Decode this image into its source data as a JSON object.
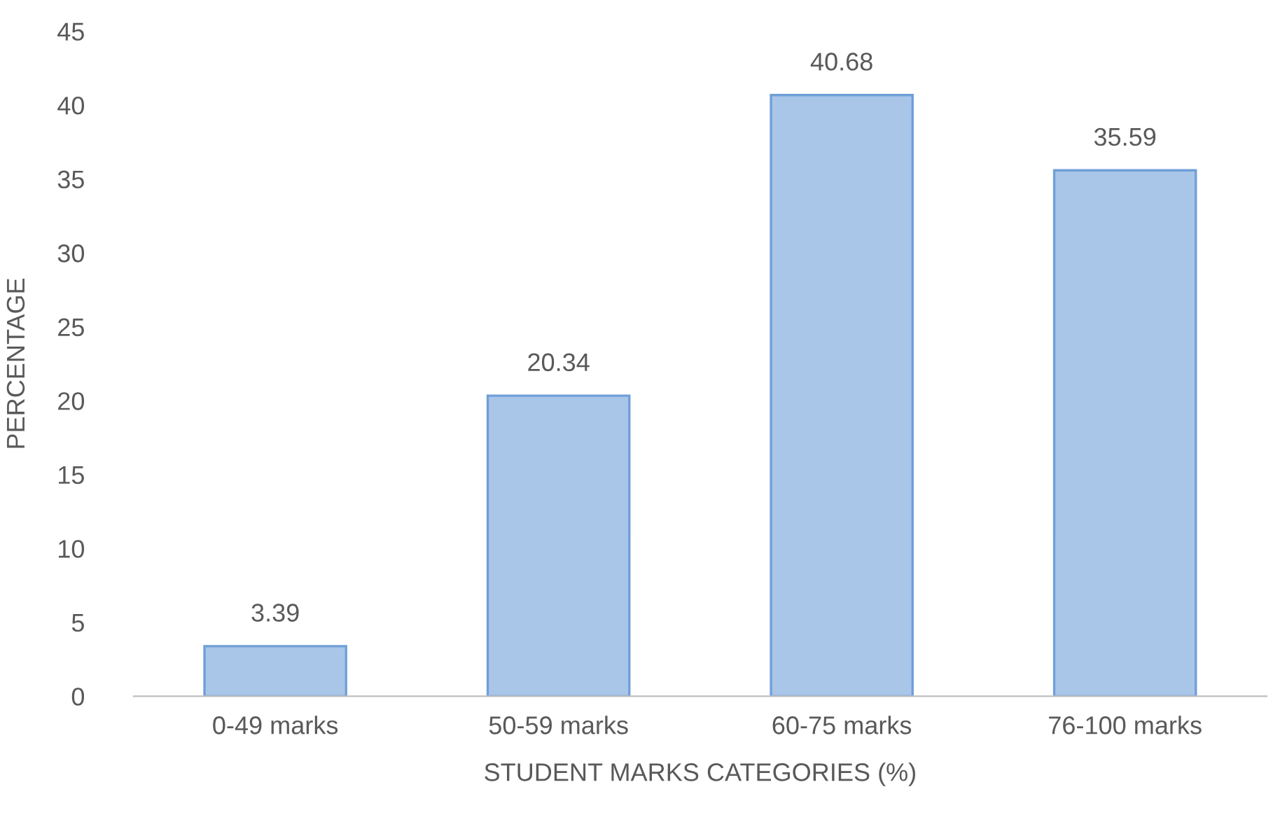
{
  "chart_data": {
    "type": "bar",
    "xlabel": "STUDENT MARKS CATEGORIES (%)",
    "ylabel": "PERCENTAGE",
    "categories": [
      "0-49 marks",
      "50-59 marks",
      "60-75 marks",
      "76-100 marks"
    ],
    "values": [
      3.39,
      20.34,
      40.68,
      35.59
    ],
    "color": "#a9c5e8",
    "ylim": [
      0,
      45
    ],
    "yticks": [
      0,
      5,
      10,
      15,
      20,
      25,
      30,
      35,
      40,
      45
    ],
    "data_labels": true,
    "grid": false,
    "legend": false
  }
}
